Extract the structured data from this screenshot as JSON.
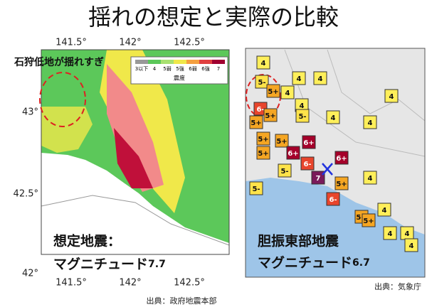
{
  "title": "揺れの想定と実際の比較",
  "left_map": {
    "annotation": "石狩低地が揺れすぎ",
    "top_ticks": [
      "141.5°",
      "142°",
      "142.5°"
    ],
    "bottom_ticks": [
      "141.5°",
      "142°",
      "142.5°"
    ],
    "left_ticks": [
      "43°",
      "42.5°",
      "42°"
    ],
    "legend": {
      "labels": [
        "3以下",
        "4",
        "5弱",
        "5強",
        "6弱",
        "6強",
        "7"
      ],
      "title": "震度"
    },
    "caption_line1": "想定地震：",
    "caption_line2": "マグニチュード",
    "magnitude": "7.7",
    "source": "出典：政府地震本部"
  },
  "right_map": {
    "markers": [
      "4",
      "4",
      "5-",
      "5+",
      "4",
      "6-",
      "4",
      "5+",
      "5-",
      "5+",
      "4",
      "5+",
      "5+",
      "6+",
      "6+",
      "5+",
      "6+",
      "7",
      "6-",
      "5+",
      "5-",
      "6-",
      "4",
      "4",
      "5-",
      "5+",
      "5+",
      "4",
      "4",
      "4",
      "4",
      "4",
      "4"
    ],
    "caption_line1": "胆振東部地震",
    "caption_line2": "マグニチュード",
    "magnitude": "6.7",
    "source": "出典：気象庁"
  }
}
